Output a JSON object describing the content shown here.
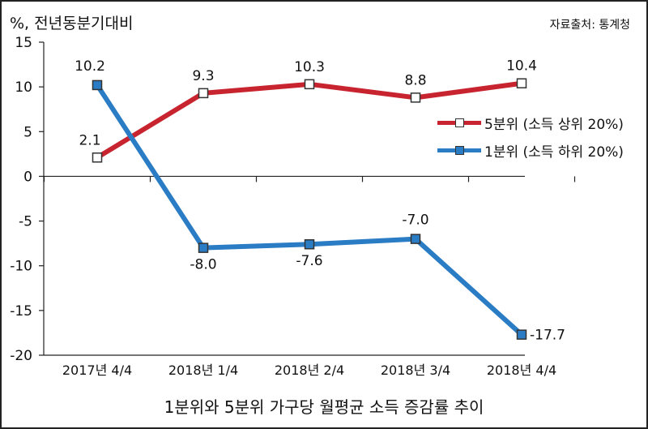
{
  "chart_data": {
    "type": "line",
    "title": "1분위와 5분위 가구당 월평균 소득 증감률 추이",
    "ylabel": "%, 전년동분기대비",
    "source": "자료출처: 통계청",
    "categories": [
      "2017년 4/4",
      "2018년 1/4",
      "2018년 2/4",
      "2018년 3/4",
      "2018년 4/4"
    ],
    "ylim": [
      -20,
      15
    ],
    "yticks": [
      15,
      10,
      5,
      0,
      -5,
      -10,
      -15,
      -20
    ],
    "ytick_labels": [
      "15",
      "10",
      "5",
      "0",
      "-5",
      "-10",
      "-15",
      "-20"
    ],
    "series": [
      {
        "name": "5분위 (소득 상위 20%)",
        "values": [
          2.1,
          9.3,
          10.3,
          8.8,
          10.4
        ],
        "labels": [
          "2.1",
          "9.3",
          "10.3",
          "8.8",
          "10.4"
        ],
        "color": "#c8242f",
        "marker_fill": "#ffffff"
      },
      {
        "name": "1분위 (소득 하위 20%)",
        "values": [
          10.2,
          -8.0,
          -7.6,
          -7.0,
          -17.7
        ],
        "labels": [
          "10.2",
          "-8.0",
          "-7.6",
          "-7.0",
          "-17.7"
        ],
        "color": "#2a7cc4",
        "marker_fill": "#2a7cc4"
      }
    ]
  }
}
